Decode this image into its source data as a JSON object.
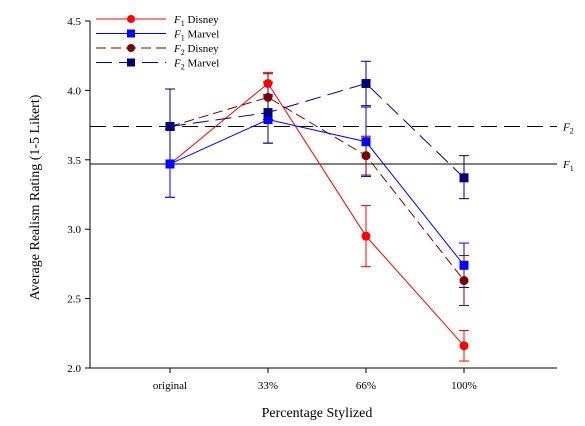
{
  "chart_data": {
    "type": "line",
    "categories": [
      "original",
      "33%",
      "66%",
      "100%"
    ],
    "xlabel": "Percentage Stylized",
    "ylabel": "Average Realism Rating (1-5 Likert)",
    "ylim": [
      2.0,
      4.5
    ],
    "yticks": [
      "2.0",
      "2.5",
      "3.0",
      "3.5",
      "4.0",
      "4.5"
    ],
    "grid": false,
    "legend_position": "top-left",
    "series": [
      {
        "name": "F1 Disney",
        "name_main": "F",
        "name_sub": "1",
        "name_rest": " Disney",
        "color": "#ff0000",
        "marker": "circle",
        "dash": "solid",
        "values": [
          3.47,
          4.05,
          2.95,
          2.16
        ],
        "err_low": [
          3.23,
          3.97,
          2.73,
          2.05
        ],
        "err_high": [
          3.72,
          4.13,
          3.17,
          2.27
        ]
      },
      {
        "name": "F1 Marvel",
        "name_main": "F",
        "name_sub": "1",
        "name_rest": " Marvel",
        "color": "#0000ff",
        "marker": "square",
        "dash": "solid",
        "values": [
          3.47,
          3.79,
          3.63,
          2.74
        ],
        "err_low": [
          3.23,
          3.62,
          3.38,
          2.58
        ],
        "err_high": [
          3.72,
          3.96,
          3.88,
          2.9
        ]
      },
      {
        "name": "F2 Disney",
        "name_main": "F",
        "name_sub": "2",
        "name_rest": " Disney",
        "color": "#7a0000",
        "marker": "circle",
        "dash": "dash",
        "values": [
          3.74,
          3.95,
          3.53,
          2.63
        ],
        "err_low": [
          3.47,
          3.79,
          3.39,
          2.45
        ],
        "err_high": [
          4.01,
          4.12,
          3.67,
          2.81
        ]
      },
      {
        "name": "F2 Marvel",
        "name_main": "F",
        "name_sub": "2",
        "name_rest": " Marvel",
        "color": "#00007a",
        "marker": "square",
        "dash": "longdash",
        "values": [
          3.74,
          3.84,
          4.05,
          3.37
        ],
        "err_low": [
          3.47,
          3.62,
          3.89,
          3.22
        ],
        "err_high": [
          4.01,
          4.06,
          4.21,
          3.53
        ]
      }
    ],
    "reference_lines": [
      {
        "label_main": "F",
        "label_sub": "2",
        "value": 3.74,
        "dash": "longdash"
      },
      {
        "label_main": "F",
        "label_sub": "1",
        "value": 3.47,
        "dash": "solid"
      }
    ]
  }
}
